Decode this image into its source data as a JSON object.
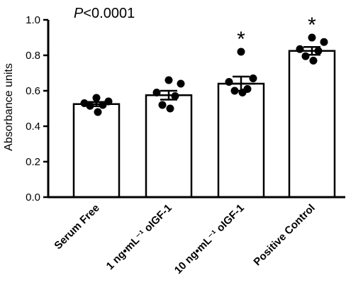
{
  "chart_data": {
    "type": "bar",
    "title": "",
    "xlabel": "",
    "ylabel": "Absorbance units",
    "ylim": [
      0,
      1.0
    ],
    "yticks": [
      "0.0",
      "0.2",
      "0.4",
      "0.6",
      "0.8",
      "1.0"
    ],
    "grid": false,
    "categories": [
      "Serum Free",
      "1 ng•mL⁻¹ oIGF-1",
      "10 ng•mL⁻¹ oIGF-1",
      "Positive Control"
    ],
    "values": [
      0.525,
      0.575,
      0.64,
      0.825
    ],
    "sem": [
      0.012,
      0.025,
      0.04,
      0.022
    ],
    "points": [
      [
        0.56,
        0.54,
        0.53,
        0.52,
        0.515,
        0.48
      ],
      [
        0.66,
        0.64,
        0.59,
        0.57,
        0.52,
        0.5
      ],
      [
        0.82,
        0.67,
        0.65,
        0.61,
        0.6,
        0.59
      ],
      [
        0.9,
        0.875,
        0.835,
        0.825,
        0.795,
        0.77
      ]
    ],
    "annotations": {
      "p_value_italic": "P",
      "p_value_rest": "<0.0001",
      "significance_marker": "*",
      "significant_categories": [
        2,
        3
      ]
    },
    "colors": {
      "bar_fill": "#ffffff",
      "stroke": "#000000",
      "points": "#000000"
    }
  }
}
